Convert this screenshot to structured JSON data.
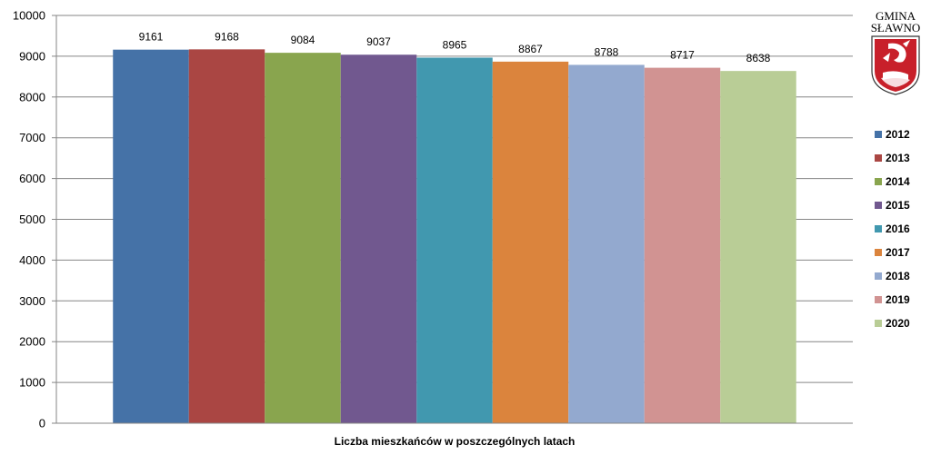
{
  "chart_data": {
    "type": "bar",
    "title": "",
    "xlabel": "Liczba mieszkańców w poszczególnych latach",
    "ylabel": "",
    "ylim": [
      0,
      10000
    ],
    "yticks": [
      0,
      1000,
      2000,
      3000,
      4000,
      5000,
      6000,
      7000,
      8000,
      9000,
      10000
    ],
    "grid": true,
    "legend_position": "right",
    "series": [
      {
        "name": "2012",
        "value": 9161,
        "color": "#4572A7"
      },
      {
        "name": "2013",
        "value": 9168,
        "color": "#AA4643"
      },
      {
        "name": "2014",
        "value": 9084,
        "color": "#89A54E"
      },
      {
        "name": "2015",
        "value": 9037,
        "color": "#71588F"
      },
      {
        "name": "2016",
        "value": 8965,
        "color": "#4198AF"
      },
      {
        "name": "2017",
        "value": 8867,
        "color": "#DB843D"
      },
      {
        "name": "2018",
        "value": 8788,
        "color": "#93A9CF"
      },
      {
        "name": "2019",
        "value": 8717,
        "color": "#D19392"
      },
      {
        "name": "2020",
        "value": 8638,
        "color": "#B9CD96"
      }
    ]
  },
  "logo": {
    "text": "GMINA SŁAWNO",
    "line1": "GMINA",
    "line2": "SŁAWNO"
  }
}
